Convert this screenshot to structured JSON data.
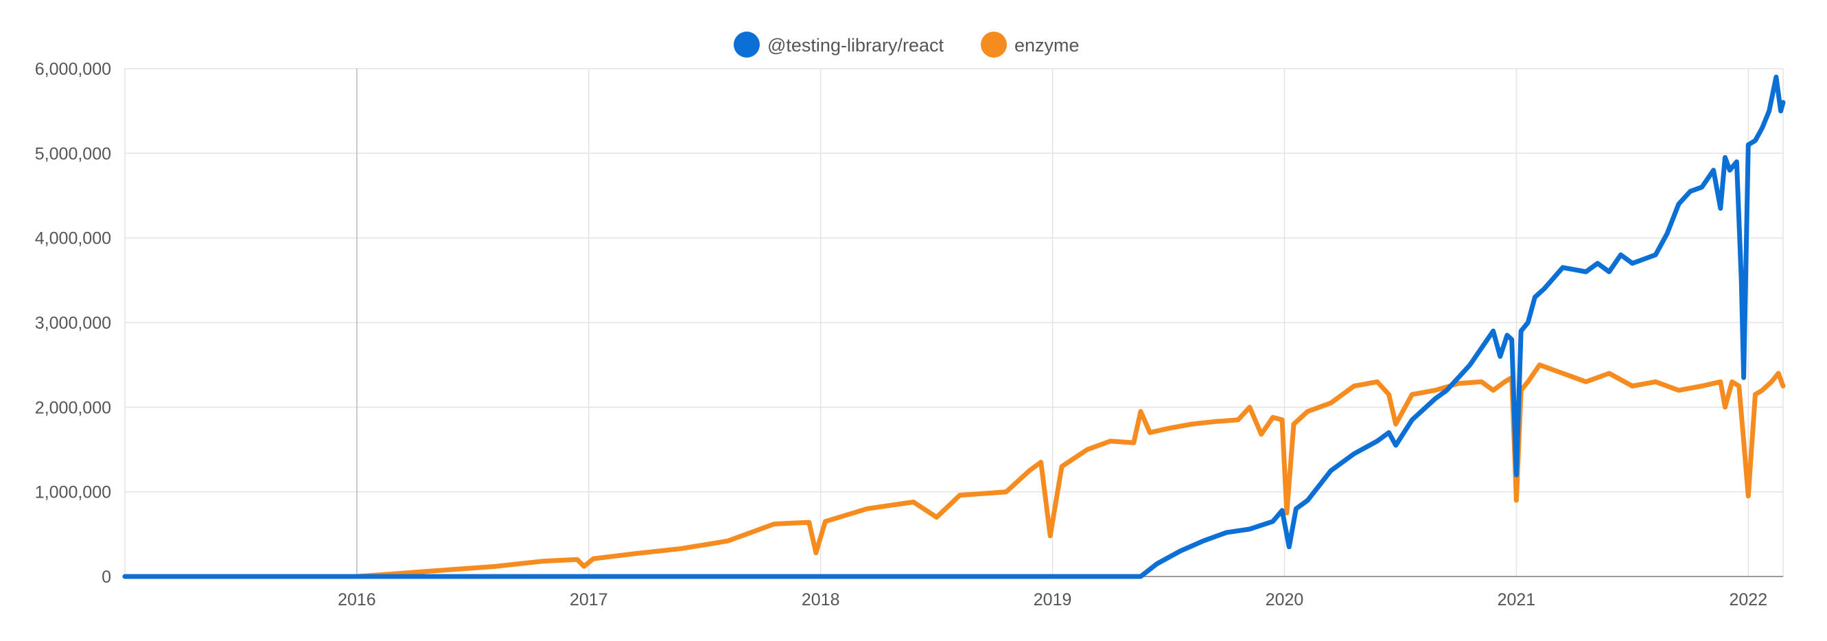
{
  "chart_data": {
    "type": "line",
    "title": "",
    "xlabel": "",
    "ylabel": "",
    "xlim": [
      2015.0,
      2022.15
    ],
    "ylim": [
      0,
      6000000
    ],
    "x_ticks": [
      {
        "value": 2016,
        "label": "2016"
      },
      {
        "value": 2017,
        "label": "2017"
      },
      {
        "value": 2018,
        "label": "2018"
      },
      {
        "value": 2019,
        "label": "2019"
      },
      {
        "value": 2020,
        "label": "2020"
      },
      {
        "value": 2021,
        "label": "2021"
      },
      {
        "value": 2022,
        "label": "2022"
      }
    ],
    "y_ticks": [
      {
        "value": 0,
        "label": "0"
      },
      {
        "value": 1000000,
        "label": "1,000,000"
      },
      {
        "value": 2000000,
        "label": "2,000,000"
      },
      {
        "value": 3000000,
        "label": "3,000,000"
      },
      {
        "value": 4000000,
        "label": "4,000,000"
      },
      {
        "value": 5000000,
        "label": "5,000,000"
      },
      {
        "value": 6000000,
        "label": "6,000,000"
      }
    ],
    "grid": true,
    "legend_position": "top-center",
    "series": [
      {
        "name": "@testing-library/react",
        "color": "#0b6fd6",
        "x": [
          2015.0,
          2016.0,
          2017.0,
          2018.0,
          2019.0,
          2019.38,
          2019.45,
          2019.55,
          2019.65,
          2019.75,
          2019.85,
          2019.95,
          2019.99,
          2020.02,
          2020.05,
          2020.1,
          2020.2,
          2020.3,
          2020.4,
          2020.45,
          2020.48,
          2020.55,
          2020.65,
          2020.7,
          2020.75,
          2020.8,
          2020.85,
          2020.9,
          2020.93,
          2020.96,
          2020.98,
          2021.0,
          2021.02,
          2021.05,
          2021.08,
          2021.12,
          2021.2,
          2021.3,
          2021.35,
          2021.4,
          2021.45,
          2021.5,
          2021.55,
          2021.6,
          2021.65,
          2021.7,
          2021.75,
          2021.8,
          2021.85,
          2021.88,
          2021.9,
          2021.92,
          2021.95,
          2021.97,
          2021.98,
          2022.0,
          2022.03,
          2022.06,
          2022.09,
          2022.12,
          2022.14,
          2022.15
        ],
        "values": [
          0,
          0,
          0,
          0,
          0,
          0,
          150000,
          300000,
          420000,
          520000,
          560000,
          650000,
          780000,
          350000,
          800000,
          900000,
          1250000,
          1450000,
          1600000,
          1700000,
          1550000,
          1850000,
          2100000,
          2200000,
          2350000,
          2500000,
          2700000,
          2900000,
          2600000,
          2850000,
          2800000,
          1200000,
          2900000,
          3000000,
          3300000,
          3400000,
          3650000,
          3600000,
          3700000,
          3600000,
          3800000,
          3700000,
          3750000,
          3800000,
          4050000,
          4400000,
          4550000,
          4600000,
          4800000,
          4350000,
          4950000,
          4800000,
          4900000,
          3500000,
          2350000,
          5100000,
          5150000,
          5300000,
          5500000,
          5900000,
          5500000,
          5600000
        ]
      },
      {
        "name": "enzyme",
        "color": "#f68b1f",
        "x": [
          2015.0,
          2016.0,
          2016.2,
          2016.4,
          2016.6,
          2016.8,
          2016.95,
          2016.98,
          2017.02,
          2017.2,
          2017.4,
          2017.6,
          2017.8,
          2017.95,
          2017.98,
          2018.02,
          2018.2,
          2018.4,
          2018.5,
          2018.6,
          2018.8,
          2018.9,
          2018.95,
          2018.99,
          2019.04,
          2019.15,
          2019.25,
          2019.35,
          2019.38,
          2019.42,
          2019.5,
          2019.6,
          2019.7,
          2019.8,
          2019.85,
          2019.9,
          2019.95,
          2019.99,
          2020.01,
          2020.04,
          2020.1,
          2020.2,
          2020.3,
          2020.4,
          2020.45,
          2020.48,
          2020.55,
          2020.65,
          2020.75,
          2020.85,
          2020.9,
          2020.95,
          2020.98,
          2021.0,
          2021.02,
          2021.05,
          2021.1,
          2021.2,
          2021.3,
          2021.4,
          2021.5,
          2021.6,
          2021.7,
          2021.8,
          2021.88,
          2021.9,
          2021.93,
          2021.96,
          2021.98,
          2022.0,
          2022.03,
          2022.06,
          2022.1,
          2022.13,
          2022.15
        ],
        "values": [
          0,
          0,
          40000,
          80000,
          120000,
          180000,
          200000,
          120000,
          210000,
          270000,
          330000,
          420000,
          620000,
          640000,
          280000,
          650000,
          800000,
          880000,
          700000,
          960000,
          1000000,
          1250000,
          1350000,
          480000,
          1300000,
          1500000,
          1600000,
          1580000,
          1950000,
          1700000,
          1750000,
          1800000,
          1830000,
          1850000,
          2000000,
          1680000,
          1880000,
          1850000,
          750000,
          1800000,
          1950000,
          2050000,
          2250000,
          2300000,
          2150000,
          1800000,
          2150000,
          2200000,
          2280000,
          2300000,
          2200000,
          2300000,
          2350000,
          900000,
          2200000,
          2300000,
          2500000,
          2400000,
          2300000,
          2400000,
          2250000,
          2300000,
          2200000,
          2250000,
          2300000,
          2000000,
          2300000,
          2250000,
          1600000,
          950000,
          2150000,
          2200000,
          2300000,
          2400000,
          2250000
        ]
      }
    ]
  }
}
